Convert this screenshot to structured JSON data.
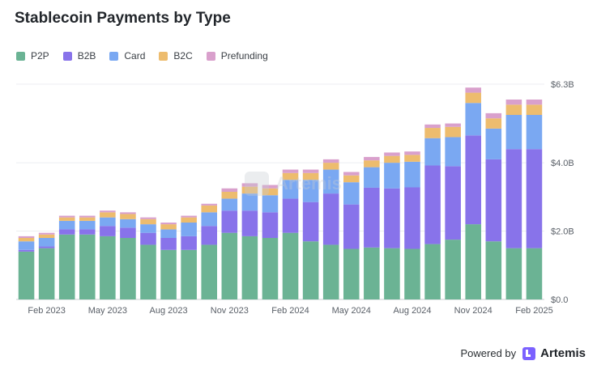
{
  "title": "Stablecoin Payments by Type",
  "footer": {
    "powered_by": "Powered by",
    "brand": "Artemis"
  },
  "watermark": {
    "text": "Artemis"
  },
  "chart_data": {
    "type": "bar",
    "stacked": true,
    "title": "Stablecoin Payments by Type",
    "xlabel": "",
    "ylabel": "",
    "ylim": [
      0,
      6.3
    ],
    "y_unit": "$B",
    "y_ticks": [
      0,
      2.0,
      4.0,
      6.3
    ],
    "y_tick_labels": [
      "$0.0",
      "$2.0B",
      "$4.0B",
      "$6.3B"
    ],
    "y_axis_position": "right",
    "grid": true,
    "legend_position": "top-left",
    "categories": [
      "Jan 2023",
      "Feb 2023",
      "Mar 2023",
      "Apr 2023",
      "May 2023",
      "Jun 2023",
      "Jul 2023",
      "Aug 2023",
      "Sep 2023",
      "Oct 2023",
      "Nov 2023",
      "Dec 2023",
      "Jan 2024",
      "Feb 2024",
      "Mar 2024",
      "Apr 2024",
      "May 2024",
      "Jun 2024",
      "Jul 2024",
      "Aug 2024",
      "Sep 2024",
      "Oct 2024",
      "Nov 2024",
      "Dec 2024",
      "Jan 2025",
      "Feb 2025"
    ],
    "x_tick_labels": [
      {
        "index": 1,
        "label": "Feb 2023"
      },
      {
        "index": 4,
        "label": "May 2023"
      },
      {
        "index": 7,
        "label": "Aug 2023"
      },
      {
        "index": 10,
        "label": "Nov 2023"
      },
      {
        "index": 13,
        "label": "Feb 2024"
      },
      {
        "index": 16,
        "label": "May 2024"
      },
      {
        "index": 19,
        "label": "Aug 2024"
      },
      {
        "index": 22,
        "label": "Nov 2024"
      },
      {
        "index": 25,
        "label": "Feb 2025"
      }
    ],
    "series": [
      {
        "name": "P2P",
        "color": "#6bb394",
        "values": [
          1.4,
          1.5,
          1.9,
          1.9,
          1.85,
          1.8,
          1.6,
          1.45,
          1.45,
          1.6,
          1.95,
          1.85,
          1.8,
          1.95,
          1.7,
          1.6,
          1.48,
          1.52,
          1.5,
          1.48,
          1.62,
          1.75,
          2.2,
          1.7,
          1.5,
          1.5
        ]
      },
      {
        "name": "B2B",
        "color": "#8873ea",
        "values": [
          0.05,
          0.05,
          0.15,
          0.15,
          0.3,
          0.3,
          0.35,
          0.35,
          0.4,
          0.55,
          0.65,
          0.75,
          0.75,
          1.0,
          1.15,
          1.5,
          1.3,
          1.75,
          1.75,
          1.8,
          2.3,
          2.15,
          2.6,
          2.4,
          2.9,
          2.9
        ]
      },
      {
        "name": "Card",
        "color": "#7aa8f2",
        "values": [
          0.25,
          0.25,
          0.25,
          0.25,
          0.25,
          0.25,
          0.25,
          0.25,
          0.4,
          0.4,
          0.35,
          0.5,
          0.5,
          0.55,
          0.65,
          0.7,
          0.65,
          0.6,
          0.75,
          0.75,
          0.8,
          0.85,
          0.95,
          0.9,
          1.0,
          1.0
        ]
      },
      {
        "name": "B2C",
        "color": "#edbc6e",
        "values": [
          0.1,
          0.1,
          0.1,
          0.1,
          0.15,
          0.15,
          0.15,
          0.15,
          0.15,
          0.2,
          0.2,
          0.2,
          0.2,
          0.2,
          0.2,
          0.2,
          0.2,
          0.2,
          0.2,
          0.2,
          0.3,
          0.3,
          0.3,
          0.3,
          0.3,
          0.3
        ]
      },
      {
        "name": "Prefunding",
        "color": "#d9a0cc",
        "values": [
          0.05,
          0.05,
          0.05,
          0.05,
          0.05,
          0.05,
          0.05,
          0.05,
          0.05,
          0.05,
          0.1,
          0.1,
          0.1,
          0.1,
          0.1,
          0.1,
          0.1,
          0.1,
          0.1,
          0.1,
          0.1,
          0.1,
          0.15,
          0.15,
          0.15,
          0.15
        ]
      }
    ]
  }
}
